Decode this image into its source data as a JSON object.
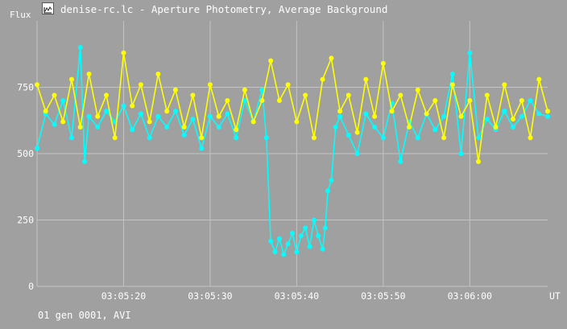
{
  "window": {
    "title": "denise-rc.lc - Aperture Photometry, Average Background",
    "icon": "chart-window-icon"
  },
  "footer": {
    "text": "01 gen 0001, AVI"
  },
  "colors": {
    "background": "#a0a0a0",
    "grid": "#c4c4c4",
    "axis_text": "#ffffff",
    "series_target": "#00ffff",
    "series_comparison": "#ffff00"
  },
  "chart_data": {
    "type": "line",
    "ylabel": "Flux",
    "xunit": "UT",
    "ylim": [
      0,
      1000
    ],
    "xlim": [
      "03:05:10",
      "03:06:09"
    ],
    "y_ticks": [
      0,
      250,
      500,
      750
    ],
    "x_ticks": [
      "03:05:20",
      "03:05:30",
      "03:05:40",
      "03:05:50",
      "03:06:00"
    ],
    "grid": true,
    "legend": "none",
    "series": [
      {
        "color": "#00ffff",
        "description": "target star; occultation-like dip at about 03:05:37–03:05:43",
        "points": [
          [
            "03:05:10",
            520
          ],
          [
            "03:05:11",
            650
          ],
          [
            "03:05:12",
            610
          ],
          [
            "03:05:13",
            700
          ],
          [
            "03:05:14",
            560
          ],
          [
            "03:05:15",
            900
          ],
          [
            "03:05:15.5",
            470
          ],
          [
            "03:05:16",
            640
          ],
          [
            "03:05:17",
            600
          ],
          [
            "03:05:18",
            660
          ],
          [
            "03:05:19",
            620
          ],
          [
            "03:05:20",
            680
          ],
          [
            "03:05:21",
            590
          ],
          [
            "03:05:22",
            650
          ],
          [
            "03:05:23",
            560
          ],
          [
            "03:05:24",
            640
          ],
          [
            "03:05:25",
            600
          ],
          [
            "03:05:26",
            660
          ],
          [
            "03:05:27",
            570
          ],
          [
            "03:05:28",
            630
          ],
          [
            "03:05:29",
            520
          ],
          [
            "03:05:30",
            640
          ],
          [
            "03:05:31",
            600
          ],
          [
            "03:05:32",
            650
          ],
          [
            "03:05:33",
            560
          ],
          [
            "03:05:34",
            700
          ],
          [
            "03:05:35",
            620
          ],
          [
            "03:05:36",
            740
          ],
          [
            "03:05:36.5",
            560
          ],
          [
            "03:05:37",
            170
          ],
          [
            "03:05:37.5",
            130
          ],
          [
            "03:05:38",
            180
          ],
          [
            "03:05:38.5",
            120
          ],
          [
            "03:05:39",
            160
          ],
          [
            "03:05:39.5",
            200
          ],
          [
            "03:05:40",
            130
          ],
          [
            "03:05:40.5",
            190
          ],
          [
            "03:05:41",
            220
          ],
          [
            "03:05:41.5",
            150
          ],
          [
            "03:05:42",
            250
          ],
          [
            "03:05:42.5",
            190
          ],
          [
            "03:05:43",
            140
          ],
          [
            "03:05:43.3",
            220
          ],
          [
            "03:05:43.6",
            360
          ],
          [
            "03:05:44",
            400
          ],
          [
            "03:05:44.5",
            600
          ],
          [
            "03:05:45",
            640
          ],
          [
            "03:05:46",
            570
          ],
          [
            "03:05:47",
            500
          ],
          [
            "03:05:48",
            650
          ],
          [
            "03:05:49",
            600
          ],
          [
            "03:05:50",
            560
          ],
          [
            "03:05:51",
            690
          ],
          [
            "03:05:52",
            470
          ],
          [
            "03:05:53",
            620
          ],
          [
            "03:05:54",
            560
          ],
          [
            "03:05:55",
            650
          ],
          [
            "03:05:56",
            590
          ],
          [
            "03:05:57",
            640
          ],
          [
            "03:05:58",
            800
          ],
          [
            "03:05:59",
            500
          ],
          [
            "03:06:00",
            880
          ],
          [
            "03:06:01",
            560
          ],
          [
            "03:06:02",
            630
          ],
          [
            "03:06:03",
            590
          ],
          [
            "03:06:04",
            660
          ],
          [
            "03:06:05",
            600
          ],
          [
            "03:06:06",
            640
          ],
          [
            "03:06:07",
            700
          ],
          [
            "03:06:08",
            650
          ],
          [
            "03:06:09",
            640
          ]
        ]
      },
      {
        "color": "#ffff00",
        "description": "comparison star",
        "points": [
          [
            "03:05:10",
            760
          ],
          [
            "03:05:11",
            660
          ],
          [
            "03:05:12",
            720
          ],
          [
            "03:05:13",
            620
          ],
          [
            "03:05:14",
            780
          ],
          [
            "03:05:15",
            600
          ],
          [
            "03:05:16",
            800
          ],
          [
            "03:05:17",
            640
          ],
          [
            "03:05:18",
            720
          ],
          [
            "03:05:19",
            560
          ],
          [
            "03:05:20",
            880
          ],
          [
            "03:05:21",
            680
          ],
          [
            "03:05:22",
            760
          ],
          [
            "03:05:23",
            620
          ],
          [
            "03:05:24",
            800
          ],
          [
            "03:05:25",
            660
          ],
          [
            "03:05:26",
            740
          ],
          [
            "03:05:27",
            600
          ],
          [
            "03:05:28",
            720
          ],
          [
            "03:05:29",
            560
          ],
          [
            "03:05:30",
            760
          ],
          [
            "03:05:31",
            640
          ],
          [
            "03:05:32",
            700
          ],
          [
            "03:05:33",
            590
          ],
          [
            "03:05:34",
            740
          ],
          [
            "03:05:35",
            620
          ],
          [
            "03:05:36",
            700
          ],
          [
            "03:05:37",
            850
          ],
          [
            "03:05:38",
            700
          ],
          [
            "03:05:39",
            760
          ],
          [
            "03:05:40",
            620
          ],
          [
            "03:05:41",
            720
          ],
          [
            "03:05:42",
            560
          ],
          [
            "03:05:43",
            780
          ],
          [
            "03:05:44",
            860
          ],
          [
            "03:05:45",
            660
          ],
          [
            "03:05:46",
            720
          ],
          [
            "03:05:47",
            580
          ],
          [
            "03:05:48",
            780
          ],
          [
            "03:05:49",
            640
          ],
          [
            "03:05:50",
            840
          ],
          [
            "03:05:51",
            660
          ],
          [
            "03:05:52",
            720
          ],
          [
            "03:05:53",
            600
          ],
          [
            "03:05:54",
            740
          ],
          [
            "03:05:55",
            650
          ],
          [
            "03:05:56",
            700
          ],
          [
            "03:05:57",
            560
          ],
          [
            "03:05:58",
            760
          ],
          [
            "03:05:59",
            640
          ],
          [
            "03:06:00",
            700
          ],
          [
            "03:06:01",
            470
          ],
          [
            "03:06:02",
            720
          ],
          [
            "03:06:03",
            600
          ],
          [
            "03:06:04",
            760
          ],
          [
            "03:06:05",
            630
          ],
          [
            "03:06:06",
            700
          ],
          [
            "03:06:07",
            560
          ],
          [
            "03:06:08",
            780
          ],
          [
            "03:06:09",
            660
          ]
        ]
      }
    ]
  }
}
